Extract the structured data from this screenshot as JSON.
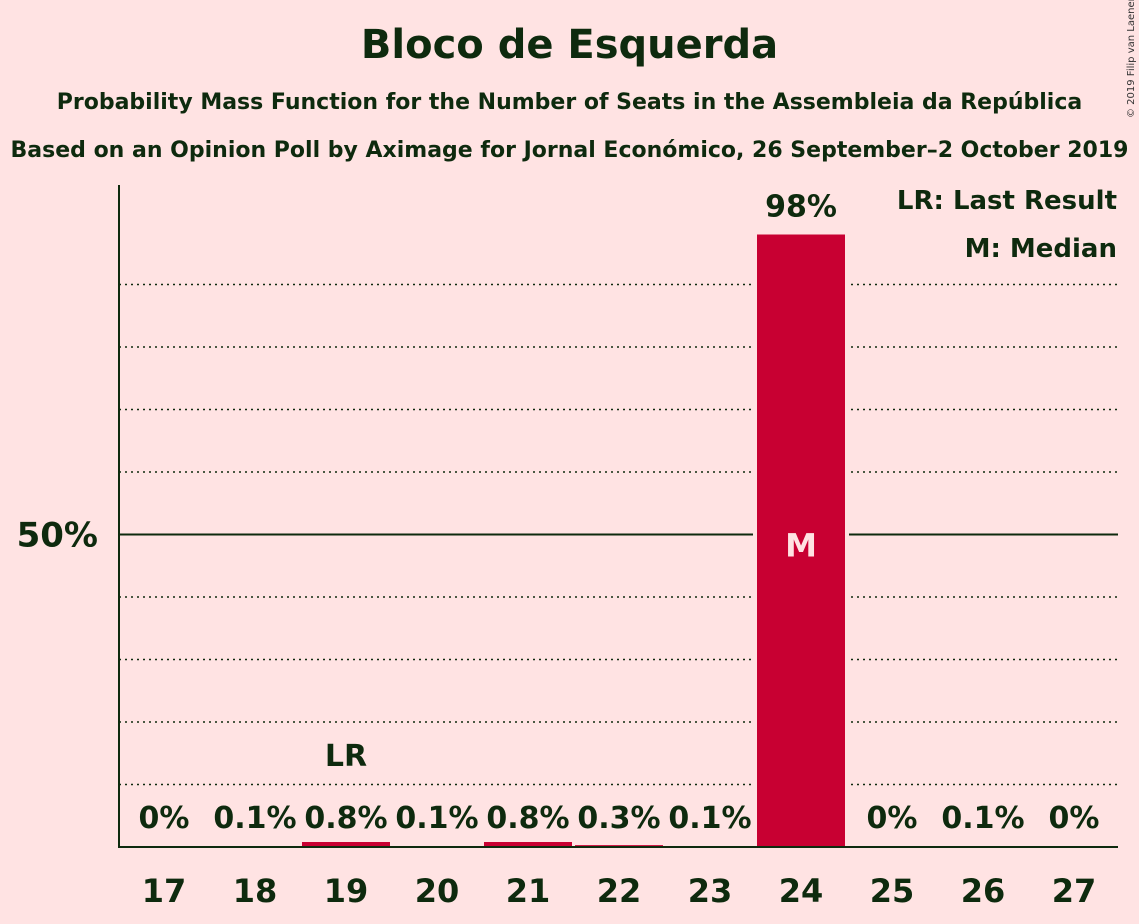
{
  "title": "Bloco de Esquerda",
  "subtitle": "Probability Mass Function for the Number of Seats in the Assembleia da República",
  "subtitle2": "Based on an Opinion Poll by Aximage for Jornal Económico, 26 September–2 October 2019",
  "copyright": "© 2019 Filip van Laenen",
  "legend": {
    "last_result": "LR: Last Result",
    "median": "M: Median"
  },
  "colors": {
    "bar": "#c80032",
    "background": "#ffe3e3",
    "text": "#0e2a0e"
  },
  "chart_data": {
    "type": "bar",
    "categories": [
      "17",
      "18",
      "19",
      "20",
      "21",
      "22",
      "23",
      "24",
      "25",
      "26",
      "27"
    ],
    "values": [
      0,
      0.1,
      0.8,
      0.1,
      0.8,
      0.3,
      0.1,
      98,
      0,
      0.1,
      0
    ],
    "value_labels": [
      "0%",
      "0.1%",
      "0.8%",
      "0.1%",
      "0.8%",
      "0.3%",
      "0.1%",
      "98%",
      "0%",
      "0.1%",
      "0%"
    ],
    "ylim": [
      0,
      100
    ],
    "y_tick_label": "50%",
    "y_tick_value": 50,
    "gridlines": [
      10,
      20,
      30,
      40,
      60,
      70,
      80,
      90
    ],
    "last_result_category": "19",
    "last_result_marker": "LR",
    "median_category": "24",
    "median_marker": "M",
    "legend_position": "top-right"
  }
}
